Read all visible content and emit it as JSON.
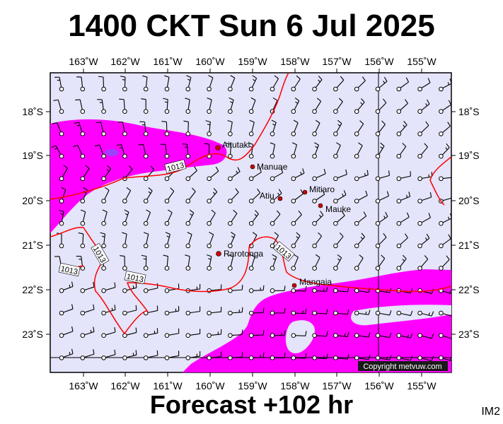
{
  "title": "1400 CKT Sun 6 Jul 2025",
  "footer": "Forecast +102 hr",
  "image_code": "IM2",
  "copyright": "Copyright metvuw.com",
  "colors": {
    "background_sea": "#e4e4fa",
    "precip": "#ff00ff",
    "precip_heavy": "#a040ff",
    "isobar": "#ff0000",
    "town": "#cc0000"
  },
  "longitude_labels": [
    "163˚W",
    "162˚W",
    "161˚W",
    "160˚W",
    "159˚W",
    "158˚W",
    "157˚W",
    "156˚W",
    "155˚W"
  ],
  "latitude_labels": [
    "18˚S",
    "19˚S",
    "20˚S",
    "21˚S",
    "22˚S",
    "23˚S"
  ],
  "isobar_value": "1013",
  "places": [
    {
      "name": "Aitutaki"
    },
    {
      "name": "Manuae"
    },
    {
      "name": "Atiu"
    },
    {
      "name": "Mitiaro"
    },
    {
      "name": "Mauke"
    },
    {
      "name": "Rarotonga"
    },
    {
      "name": "Mangaia"
    }
  ]
}
